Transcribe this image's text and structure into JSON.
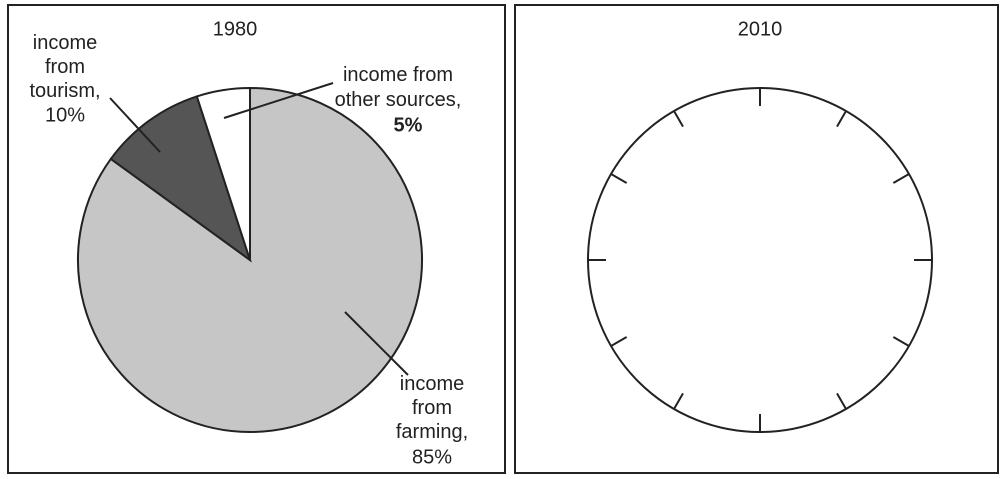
{
  "chart_data": [
    {
      "type": "pie",
      "title": "1980",
      "categories": [
        "income from farming,",
        "income from tourism,",
        "income from other sources,"
      ],
      "values": [
        85,
        10,
        5
      ],
      "value_labels": [
        "85%",
        "10%",
        "5%"
      ],
      "colors": [
        "#c6c6c6",
        "#555555",
        "#ffffff"
      ]
    },
    {
      "type": "pie",
      "title": "2010"
    }
  ]
}
